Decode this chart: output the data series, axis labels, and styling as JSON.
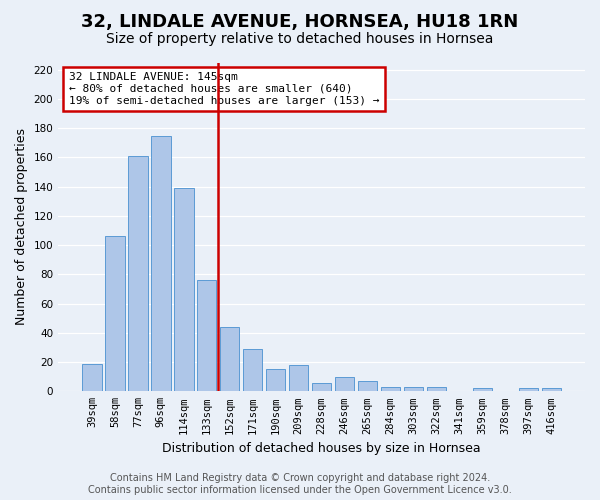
{
  "title": "32, LINDALE AVENUE, HORNSEA, HU18 1RN",
  "subtitle": "Size of property relative to detached houses in Hornsea",
  "xlabel": "Distribution of detached houses by size in Hornsea",
  "ylabel": "Number of detached properties",
  "categories": [
    "39sqm",
    "58sqm",
    "77sqm",
    "96sqm",
    "114sqm",
    "133sqm",
    "152sqm",
    "171sqm",
    "190sqm",
    "209sqm",
    "228sqm",
    "246sqm",
    "265sqm",
    "284sqm",
    "303sqm",
    "322sqm",
    "341sqm",
    "359sqm",
    "378sqm",
    "397sqm",
    "416sqm"
  ],
  "values": [
    19,
    106,
    161,
    175,
    139,
    76,
    44,
    29,
    15,
    18,
    6,
    10,
    7,
    3,
    3,
    3,
    0,
    2,
    0,
    2,
    2
  ],
  "bar_color": "#aec6e8",
  "bar_edge_color": "#5b9bd5",
  "vline_color": "#cc0000",
  "annotation_lines": [
    "32 LINDALE AVENUE: 145sqm",
    "← 80% of detached houses are smaller (640)",
    "19% of semi-detached houses are larger (153) →"
  ],
  "annotation_box_color": "#cc0000",
  "ylim": [
    0,
    225
  ],
  "yticks": [
    0,
    20,
    40,
    60,
    80,
    100,
    120,
    140,
    160,
    180,
    200,
    220
  ],
  "bg_color": "#eaf0f8",
  "grid_color": "#ffffff",
  "footer": "Contains HM Land Registry data © Crown copyright and database right 2024.\nContains public sector information licensed under the Open Government Licence v3.0.",
  "title_fontsize": 13,
  "subtitle_fontsize": 10,
  "xlabel_fontsize": 9,
  "ylabel_fontsize": 9,
  "tick_fontsize": 7.5,
  "annotation_fontsize": 8,
  "footer_fontsize": 7
}
